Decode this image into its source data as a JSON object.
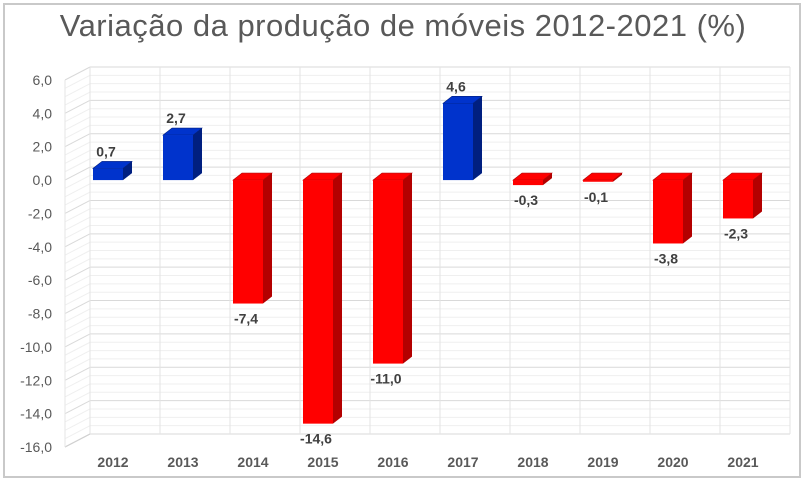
{
  "chart_data": {
    "type": "bar",
    "title": "Variação da produção de móveis 2012-2021 (%)",
    "categories": [
      "2012",
      "2013",
      "2014",
      "2015",
      "2016",
      "2017",
      "2018",
      "2019",
      "2020",
      "2021"
    ],
    "values": [
      0.7,
      2.7,
      -7.4,
      -14.6,
      -11.0,
      4.6,
      -0.3,
      -0.1,
      -3.8,
      -2.3
    ],
    "value_labels": [
      "0,7",
      "2,7",
      "-7,4",
      "-14,6",
      "-11,0",
      "4,6",
      "-0,3",
      "-0,1",
      "-3,8",
      "-2,3"
    ],
    "ylim": [
      -16,
      6
    ],
    "yticks": [
      "6,0",
      "4,0",
      "2,0",
      "0,0",
      "-2,0",
      "-4,0",
      "-6,0",
      "-8,0",
      "-10,0",
      "-12,0",
      "-14,0",
      "-16,0"
    ],
    "xlabel": "",
    "ylabel": "",
    "grid": true,
    "colors": {
      "positive": "#0033cc",
      "positive_side": "#001f80",
      "negative": "#ff0000",
      "negative_side": "#b30000"
    }
  }
}
